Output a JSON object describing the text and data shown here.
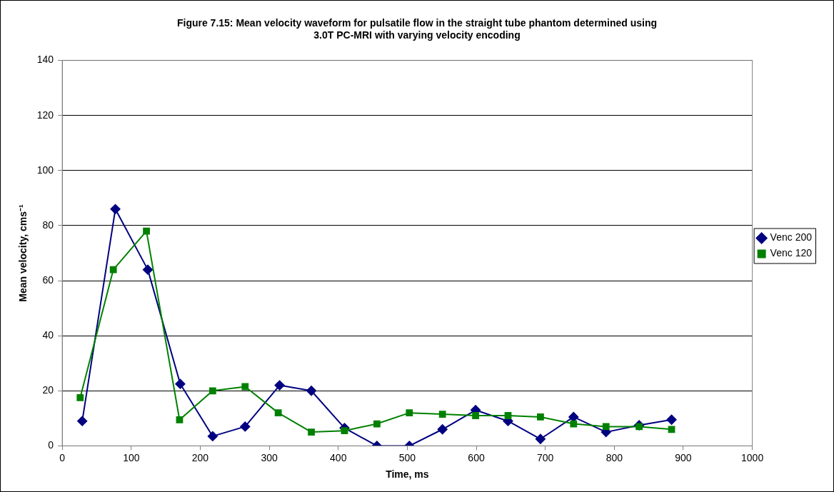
{
  "chart_data": {
    "type": "line",
    "title": [
      "Figure 7.15: Mean velocity waveform for pulsatile flow in the straight tube phantom determined using",
      "3.0T PC-MRI with varying velocity encoding"
    ],
    "xlabel": "Time, ms",
    "ylabel": "Mean velocity, cms⁻¹",
    "xlim": [
      0,
      1000
    ],
    "xticks": [
      0,
      100,
      200,
      300,
      400,
      500,
      600,
      700,
      800,
      900,
      1000
    ],
    "ylim": [
      0,
      140
    ],
    "yticks": [
      0,
      20,
      40,
      60,
      80,
      100,
      120,
      140
    ],
    "grid": "y",
    "legend": "right",
    "line_style": "solid",
    "series": [
      {
        "name": "Venc 200",
        "color": "#000080",
        "marker": "diamond",
        "x": [
          29,
          77,
          124,
          171,
          218,
          265,
          315,
          361,
          409,
          456,
          503,
          551,
          599,
          646,
          693,
          741,
          788,
          836,
          883
        ],
        "values": [
          9,
          86,
          64,
          22.5,
          3.5,
          7,
          22,
          20,
          6.5,
          0,
          0,
          6,
          13,
          9,
          2.5,
          10.5,
          5,
          7.5,
          9.5
        ]
      },
      {
        "name": "Venc 120",
        "color": "#008000",
        "marker": "square",
        "x": [
          26,
          74,
          122,
          170,
          218,
          265,
          313,
          361,
          409,
          456,
          503,
          551,
          599,
          646,
          693,
          741,
          788,
          836,
          883
        ],
        "values": [
          17.5,
          64,
          78,
          9.5,
          20,
          21.5,
          12,
          5,
          5.5,
          8,
          12,
          11.5,
          11,
          11,
          10.5,
          8,
          7,
          7,
          6
        ]
      }
    ]
  }
}
